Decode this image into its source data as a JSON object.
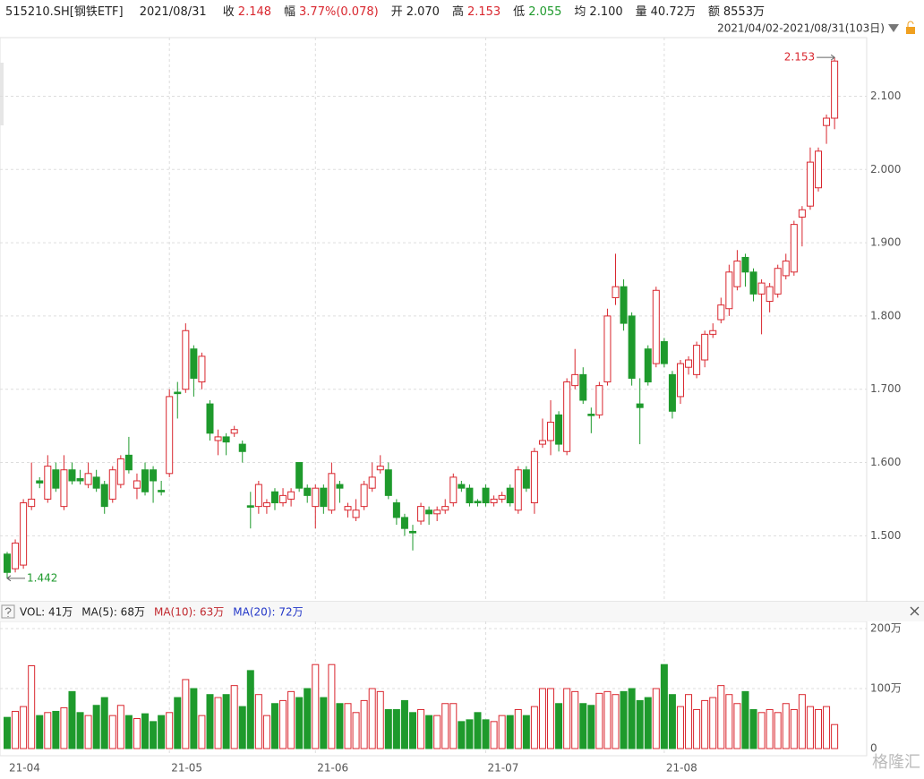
{
  "header": {
    "code": "515210.SH[钢铁ETF]",
    "date": "2021/08/31",
    "fields": [
      {
        "label": "收",
        "value": "2.148",
        "tone": "up"
      },
      {
        "label": "幅",
        "value": "3.77%(0.078)",
        "tone": "up"
      },
      {
        "label": "开",
        "value": "2.070",
        "tone": "flat"
      },
      {
        "label": "高",
        "value": "2.153",
        "tone": "up"
      },
      {
        "label": "低",
        "value": "2.055",
        "tone": "down"
      },
      {
        "label": "均",
        "value": "2.100",
        "tone": "flat"
      },
      {
        "label": "量",
        "value": "40.72万",
        "tone": "flat"
      },
      {
        "label": "额",
        "value": "8553万",
        "tone": "flat"
      }
    ],
    "range": "2021/04/02-2021/08/31(103日)"
  },
  "watermark": "格隆汇",
  "chart_data": [
    {
      "type": "candlestick",
      "up_color": "#d9262e",
      "down_color": "#1e9a2c",
      "max_label": "2.153",
      "min_label": "1.442",
      "categories": [
        "21-04",
        null,
        null,
        null,
        null,
        null,
        null,
        null,
        null,
        null,
        null,
        null,
        null,
        null,
        null,
        null,
        null,
        null,
        null,
        null,
        "21-05",
        null,
        null,
        null,
        null,
        null,
        null,
        null,
        null,
        null,
        null,
        null,
        null,
        null,
        null,
        null,
        null,
        null,
        "21-06",
        null,
        null,
        null,
        null,
        null,
        null,
        null,
        null,
        null,
        null,
        null,
        null,
        null,
        null,
        null,
        null,
        null,
        null,
        null,
        null,
        "21-07",
        null,
        null,
        null,
        null,
        null,
        null,
        null,
        null,
        null,
        null,
        null,
        null,
        null,
        null,
        null,
        null,
        null,
        null,
        null,
        null,
        null,
        "21-08",
        null,
        null,
        null,
        null,
        null,
        null,
        null,
        null,
        null,
        null,
        null,
        null,
        null,
        null,
        null,
        null,
        null,
        null,
        null,
        null,
        null
      ],
      "open": [
        1.475,
        1.455,
        1.46,
        1.54,
        1.575,
        1.55,
        1.59,
        1.54,
        1.59,
        1.578,
        1.57,
        1.58,
        1.57,
        1.55,
        1.57,
        1.61,
        1.565,
        1.59,
        1.59,
        1.562,
        1.585,
        1.696,
        1.7,
        1.755,
        1.71,
        1.68,
        1.63,
        1.635,
        1.64,
        1.625,
        1.541,
        1.54,
        1.54,
        1.56,
        1.545,
        1.55,
        1.6,
        1.565,
        1.54,
        1.565,
        1.535,
        1.57,
        1.535,
        1.525,
        1.54,
        1.565,
        1.59,
        1.59,
        1.545,
        1.525,
        1.506,
        1.52,
        1.535,
        1.53,
        1.535,
        1.545,
        1.57,
        1.565,
        1.547,
        1.565,
        1.545,
        1.55,
        1.565,
        1.535,
        1.59,
        1.545,
        1.625,
        1.63,
        1.665,
        1.615,
        1.705,
        1.72,
        1.666,
        1.665,
        1.71,
        1.825,
        1.84,
        1.8,
        1.68,
        1.755,
        1.735,
        1.765,
        1.72,
        1.69,
        1.73,
        1.72,
        1.74,
        1.775,
        1.795,
        1.81,
        1.84,
        1.88,
        1.86,
        1.83,
        1.82,
        1.83,
        1.855,
        1.86,
        1.935,
        1.95,
        1.975,
        2.06,
        2.07
      ],
      "high": [
        1.478,
        1.495,
        1.55,
        1.6,
        1.58,
        1.61,
        1.6,
        1.61,
        1.6,
        1.59,
        1.6,
        1.59,
        1.575,
        1.595,
        1.61,
        1.635,
        1.585,
        1.6,
        1.595,
        1.575,
        1.7,
        1.71,
        1.79,
        1.76,
        1.75,
        1.685,
        1.645,
        1.64,
        1.65,
        1.63,
        1.56,
        1.575,
        1.55,
        1.565,
        1.565,
        1.565,
        1.6,
        1.57,
        1.57,
        1.57,
        1.6,
        1.575,
        1.545,
        1.55,
        1.575,
        1.6,
        1.61,
        1.6,
        1.55,
        1.53,
        1.515,
        1.545,
        1.54,
        1.54,
        1.55,
        1.585,
        1.575,
        1.57,
        1.55,
        1.57,
        1.555,
        1.56,
        1.57,
        1.595,
        1.595,
        1.62,
        1.66,
        1.685,
        1.67,
        1.715,
        1.755,
        1.73,
        1.675,
        1.71,
        1.81,
        1.885,
        1.85,
        1.805,
        1.715,
        1.76,
        1.84,
        1.77,
        1.725,
        1.74,
        1.745,
        1.765,
        1.78,
        1.79,
        1.825,
        1.87,
        1.89,
        1.885,
        1.865,
        1.85,
        1.845,
        1.87,
        1.885,
        1.93,
        1.95,
        2.03,
        2.03,
        2.075,
        2.153
      ],
      "low": [
        1.442,
        1.45,
        1.455,
        1.535,
        1.565,
        1.545,
        1.56,
        1.535,
        1.57,
        1.57,
        1.565,
        1.56,
        1.53,
        1.545,
        1.565,
        1.585,
        1.55,
        1.555,
        1.545,
        1.555,
        1.58,
        1.66,
        1.695,
        1.69,
        1.7,
        1.63,
        1.61,
        1.61,
        1.635,
        1.6,
        1.51,
        1.53,
        1.53,
        1.535,
        1.54,
        1.54,
        1.56,
        1.545,
        1.51,
        1.53,
        1.53,
        1.545,
        1.525,
        1.52,
        1.535,
        1.56,
        1.585,
        1.55,
        1.515,
        1.5,
        1.48,
        1.515,
        1.515,
        1.52,
        1.53,
        1.54,
        1.56,
        1.54,
        1.54,
        1.54,
        1.54,
        1.545,
        1.54,
        1.53,
        1.56,
        1.53,
        1.62,
        1.61,
        1.615,
        1.61,
        1.7,
        1.68,
        1.64,
        1.66,
        1.705,
        1.815,
        1.78,
        1.705,
        1.625,
        1.705,
        1.73,
        1.73,
        1.66,
        1.68,
        1.72,
        1.715,
        1.73,
        1.77,
        1.79,
        1.8,
        1.835,
        1.84,
        1.82,
        1.775,
        1.805,
        1.825,
        1.85,
        1.855,
        1.895,
        1.945,
        1.97,
        2.035,
        2.055
      ],
      "close": [
        1.45,
        1.49,
        1.545,
        1.55,
        1.572,
        1.595,
        1.565,
        1.59,
        1.575,
        1.575,
        1.585,
        1.565,
        1.54,
        1.59,
        1.605,
        1.59,
        1.575,
        1.56,
        1.575,
        1.56,
        1.69,
        1.694,
        1.78,
        1.715,
        1.745,
        1.64,
        1.635,
        1.628,
        1.645,
        1.615,
        1.539,
        1.57,
        1.545,
        1.545,
        1.555,
        1.56,
        1.565,
        1.555,
        1.565,
        1.54,
        1.585,
        1.565,
        1.54,
        1.535,
        1.57,
        1.58,
        1.595,
        1.555,
        1.525,
        1.51,
        1.504,
        1.54,
        1.53,
        1.535,
        1.54,
        1.58,
        1.565,
        1.545,
        1.545,
        1.545,
        1.55,
        1.555,
        1.545,
        1.59,
        1.565,
        1.615,
        1.63,
        1.655,
        1.625,
        1.71,
        1.72,
        1.685,
        1.664,
        1.705,
        1.8,
        1.84,
        1.79,
        1.715,
        1.675,
        1.71,
        1.835,
        1.735,
        1.67,
        1.735,
        1.74,
        1.76,
        1.775,
        1.78,
        1.815,
        1.86,
        1.875,
        1.86,
        1.83,
        1.845,
        1.84,
        1.865,
        1.875,
        1.925,
        1.945,
        2.01,
        2.025,
        2.07,
        2.148
      ],
      "ylim": [
        1.41,
        2.18
      ],
      "yticks": [
        {
          "value": 1.5,
          "label": "1.500"
        },
        {
          "value": 1.6,
          "label": "1.600"
        },
        {
          "value": 1.7,
          "label": "1.700"
        },
        {
          "value": 1.8,
          "label": "1.800"
        },
        {
          "value": 1.9,
          "label": "1.900"
        },
        {
          "value": 2.0,
          "label": "2.000"
        },
        {
          "value": 2.1,
          "label": "2.100"
        }
      ],
      "grid": true
    },
    {
      "type": "bar",
      "legend": [
        {
          "text": "VOL: 41万",
          "color": "#222222"
        },
        {
          "text": "MA(5): 68万",
          "color": "#222222"
        },
        {
          "text": "MA(10): 63万",
          "color": "#c0282e"
        },
        {
          "text": "MA(20): 72万",
          "color": "#2236c8"
        }
      ],
      "values": [
        52,
        62,
        70,
        138,
        55,
        60,
        62,
        68,
        95,
        60,
        55,
        72,
        85,
        55,
        72,
        55,
        50,
        58,
        45,
        55,
        60,
        85,
        115,
        100,
        55,
        90,
        85,
        90,
        105,
        70,
        130,
        90,
        55,
        75,
        80,
        95,
        85,
        100,
        140,
        85,
        140,
        75,
        75,
        60,
        80,
        100,
        95,
        65,
        65,
        80,
        60,
        65,
        55,
        55,
        75,
        75,
        45,
        48,
        60,
        48,
        45,
        55,
        55,
        65,
        55,
        70,
        100,
        100,
        75,
        100,
        95,
        75,
        72,
        92,
        95,
        90,
        95,
        100,
        80,
        85,
        100,
        140,
        90,
        70,
        90,
        65,
        80,
        85,
        105,
        90,
        75,
        95,
        65,
        60,
        65,
        60,
        75,
        65,
        90,
        70,
        65,
        70,
        40
      ],
      "ylim": [
        0,
        200
      ],
      "yticks": [
        0,
        {
          "value": 100,
          "label": "100万"
        },
        {
          "value": 200,
          "label": "200万"
        }
      ],
      "grid": true
    }
  ]
}
